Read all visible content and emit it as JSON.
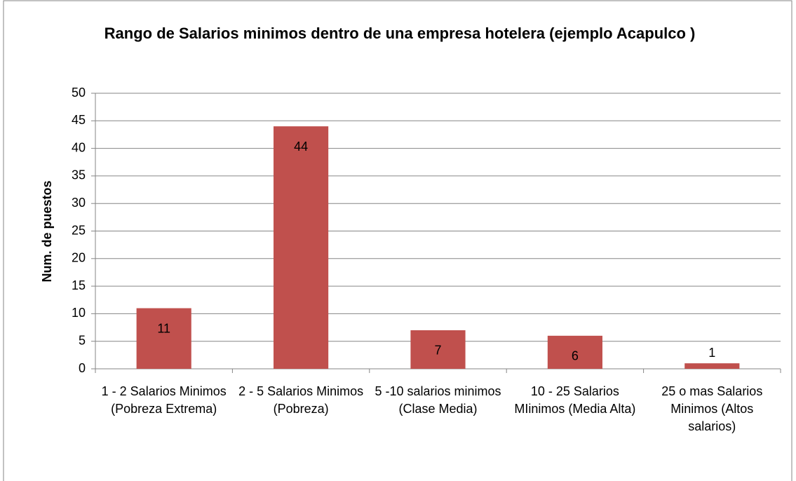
{
  "chart_data": {
    "type": "bar",
    "title": "Rango de Salarios minimos dentro de una empresa hotelera  (ejemplo Acapulco )",
    "y_label": "Num. de puestos",
    "categories": [
      "1 - 2 Salarios Minimos (Pobreza Extrema)",
      "2 - 5 Salarios Minimos (Pobreza)",
      "5 -10 salarios minimos (Clase Media)",
      "10 - 25 Salarios MIinimos (Media Alta)",
      "25 o mas Salarios Minimos (Altos salarios)"
    ],
    "values": [
      11,
      44,
      7,
      6,
      1
    ],
    "color": "#c0504d",
    "ylim": [
      0,
      50
    ],
    "yticks": [
      0,
      5,
      10,
      15,
      20,
      25,
      30,
      35,
      40,
      45,
      50
    ],
    "grid": true
  }
}
